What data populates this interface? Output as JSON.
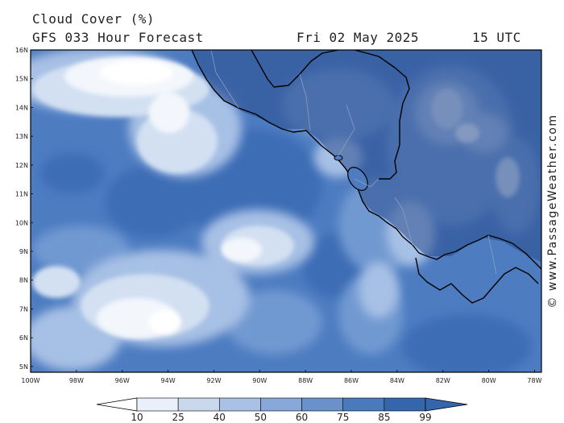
{
  "header": {
    "title": "Cloud Cover (%)",
    "subtitle": "GFS 033 Hour Forecast",
    "date": "Fri 02 May 2025",
    "time": "15 UTC"
  },
  "credit": "© www.PassageWeather.com",
  "map": {
    "lat_labels": [
      "16N",
      "15N",
      "14N",
      "13N",
      "12N",
      "11N",
      "10N",
      "9N",
      "8N",
      "7N",
      "6N",
      "5N"
    ],
    "lon_labels": [
      "100W",
      "98W",
      "96W",
      "94W",
      "92W",
      "90W",
      "88W",
      "86W",
      "84W",
      "82W",
      "80W",
      "78W"
    ],
    "lat_range": [
      4.8,
      16.0
    ],
    "lon_range": [
      -100.0,
      -77.7
    ],
    "land_color": "#1e3f7c",
    "coast_color": "#000000"
  },
  "colorbar": {
    "ticks": [
      "10",
      "25",
      "40",
      "50",
      "60",
      "75",
      "85",
      "99"
    ],
    "colors": [
      "#ffffff",
      "#e9f0fa",
      "#cad8ee",
      "#a9c1e4",
      "#87a8d8",
      "#6a91cc",
      "#4b79be",
      "#3566ad"
    ]
  }
}
